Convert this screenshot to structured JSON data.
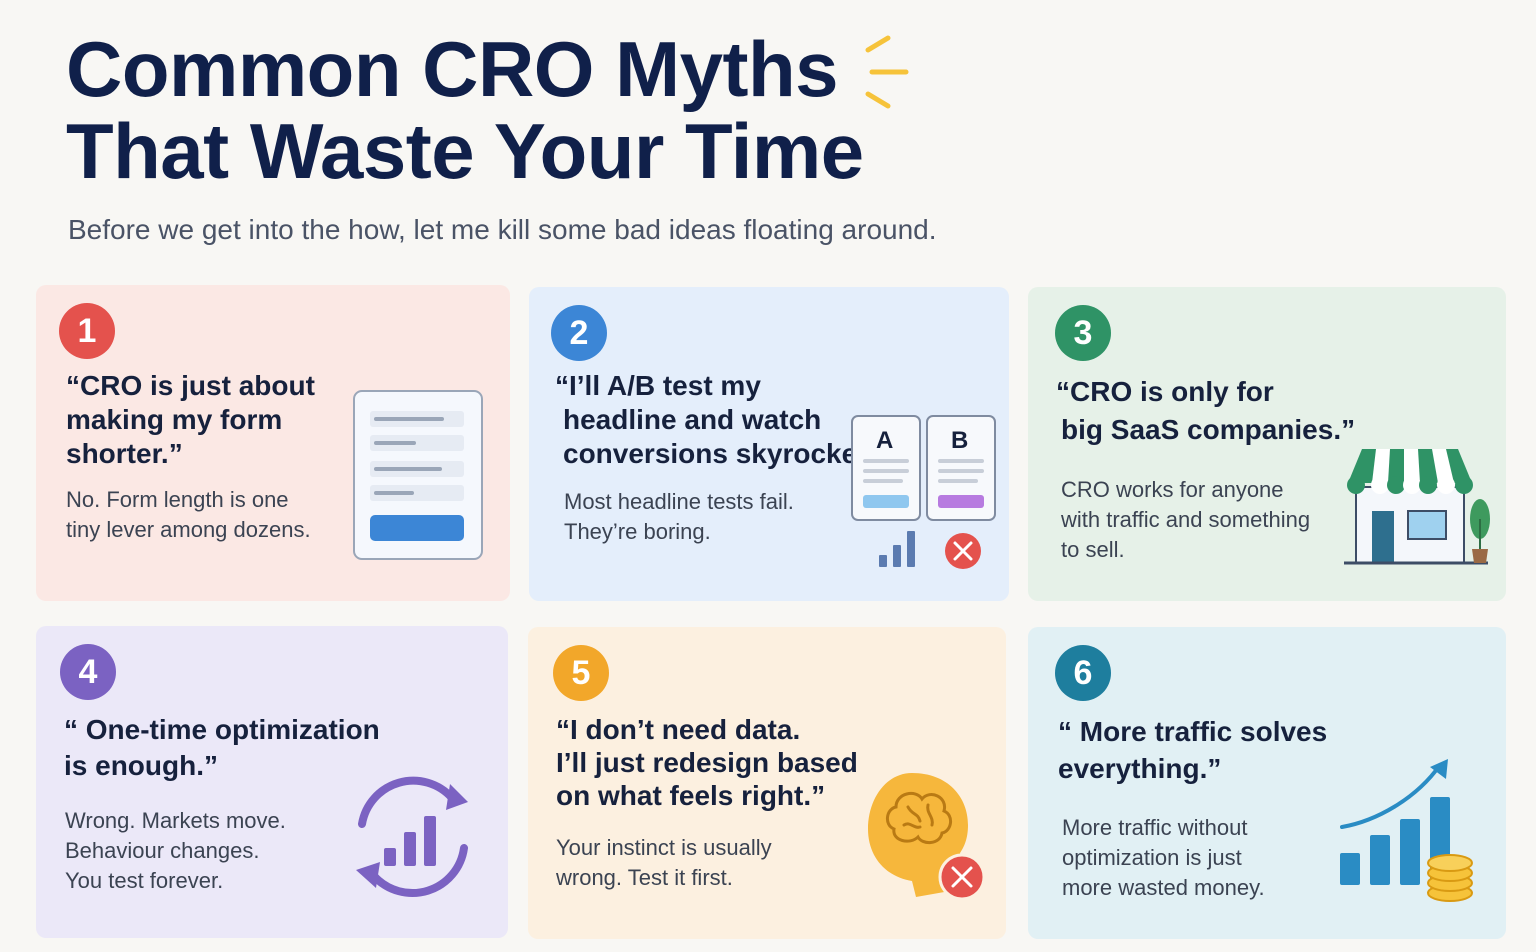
{
  "header": {
    "title_line1": "Common CRO Myths",
    "title_line2": "That Waste Your Time",
    "subtitle": "Before we get into the how, let me kill some bad ideas floating around."
  },
  "colors": {
    "title": "#10204a",
    "card1_bg": "#fbe8e4",
    "card1_accent": "#e4524d",
    "card2_bg": "#e4eefb",
    "card2_accent": "#3c86d6",
    "card3_bg": "#e6f1e8",
    "card3_accent": "#2f9366",
    "card4_bg": "#ebe8f8",
    "card4_accent": "#7b62c2",
    "card5_bg": "#fcf0e0",
    "card5_accent": "#f2a72a",
    "card6_bg": "#e1f0f4",
    "card6_accent": "#1e7e9e",
    "spark": "#f6c33a"
  },
  "cards": [
    {
      "number": "1",
      "myth": [
        "“CRO is just about",
        "making my form",
        "shorter.”"
      ],
      "desc": [
        "No. Form length is one",
        "tiny lever among dozens."
      ],
      "icon": "form-icon"
    },
    {
      "number": "2",
      "myth": [
        "“I’ll A/B test my",
        "headline and watch",
        "conversions skyrocket.”"
      ],
      "desc": [
        "Most headline tests fail.",
        "They’re boring."
      ],
      "icon": "ab-test-icon",
      "variant_a": "A",
      "variant_b": "B"
    },
    {
      "number": "3",
      "myth": [
        "“CRO is only for",
        "big SaaS companies.”"
      ],
      "desc": [
        "CRO works for anyone",
        "with traffic and something",
        "to sell."
      ],
      "icon": "storefront-icon"
    },
    {
      "number": "4",
      "myth": [
        "“ One-time optimization",
        "is enough.”"
      ],
      "desc": [
        "Wrong. Markets move.",
        "Behaviour changes.",
        "You test forever."
      ],
      "icon": "cycle-chart-icon"
    },
    {
      "number": "5",
      "myth": [
        "“I don’t need data.",
        "I’ll just redesign based",
        "on what feels right.”"
      ],
      "desc": [
        "Your instinct is usually",
        "wrong. Test it first."
      ],
      "icon": "brain-head-icon"
    },
    {
      "number": "6",
      "myth": [
        "“ More traffic solves",
        "everything.”"
      ],
      "desc": [
        "More traffic without",
        "optimization is just",
        "more wasted money."
      ],
      "icon": "growth-coins-icon"
    }
  ]
}
